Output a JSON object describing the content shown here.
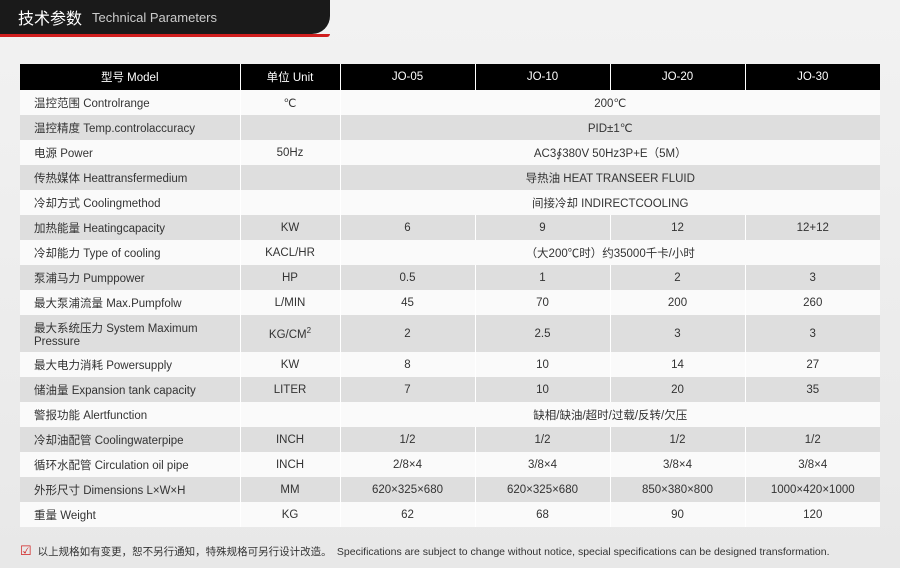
{
  "header": {
    "title_cn": "技术参数",
    "title_en": "Technical Parameters"
  },
  "columns": {
    "model": "型号 Model",
    "unit": "单位 Unit",
    "models": [
      "JO-05",
      "JO-10",
      "JO-20",
      "JO-30"
    ]
  },
  "rows": [
    {
      "label": "温控范围 Controlrange",
      "unit": "℃",
      "span": "200℃"
    },
    {
      "label": "温控精度 Temp.controlaccuracy",
      "unit": "",
      "span": "PID±1℃"
    },
    {
      "label": "电源 Power",
      "unit": "50Hz",
      "span": "AC3∮380V 50Hz3P+E（5M）"
    },
    {
      "label": "传热媒体 Heattransfermedium",
      "unit": "",
      "span": "导热油 HEAT TRANSEER FLUID"
    },
    {
      "label": "冷却方式 Coolingmethod",
      "unit": "",
      "span": "间接冷却 INDIRECTCOOLING"
    },
    {
      "label": "加热能量 Heatingcapacity",
      "unit": "KW",
      "vals": [
        "6",
        "9",
        "12",
        "12+12"
      ]
    },
    {
      "label": "冷却能力 Type of cooling",
      "unit": "KACL/HR",
      "span": "（大200℃时）约35000千卡/小时"
    },
    {
      "label": "泵浦马力 Pumppower",
      "unit": "HP",
      "vals": [
        "0.5",
        "1",
        "2",
        "3"
      ]
    },
    {
      "label": "最大泵浦流量 Max.Pumpfolw",
      "unit": "L/MIN",
      "vals": [
        "45",
        "70",
        "200",
        "260"
      ]
    },
    {
      "label": "最大系统压力 System Maximum Pressure",
      "unit_html": "KG/CM<sup>2</sup>",
      "vals": [
        "2",
        "2.5",
        "3",
        "3"
      ]
    },
    {
      "label": "最大电力消耗 Powersupply",
      "unit": "KW",
      "vals": [
        "8",
        "10",
        "14",
        "27"
      ]
    },
    {
      "label": "储油量 Expansion tank capacity",
      "unit": "LITER",
      "vals": [
        "7",
        "10",
        "20",
        "35"
      ]
    },
    {
      "label": "警报功能 Alertfunction",
      "unit": "",
      "span": "缺相/缺油/超时/过载/反转/欠压"
    },
    {
      "label": "冷却油配管 Coolingwaterpipe",
      "unit": "INCH",
      "vals": [
        "1/2",
        "1/2",
        "1/2",
        "1/2"
      ]
    },
    {
      "label": "循环水配管 Circulation oil pipe",
      "unit": "INCH",
      "vals": [
        "2/8×4",
        "3/8×4",
        "3/8×4",
        "3/8×4"
      ]
    },
    {
      "label": "外形尺寸 Dimensions L×W×H",
      "unit": "MM",
      "vals": [
        "620×325×680",
        "620×325×680",
        "850×380×800",
        "1000×420×1000"
      ]
    },
    {
      "label": "重量 Weight",
      "unit": "KG",
      "vals": [
        "62",
        "68",
        "90",
        "120"
      ]
    }
  ],
  "footer": {
    "text": "以上规格如有变更，恕不另行通知，特殊规格可另行设计改造。　Specifications are subject to change without notice, special specifications can be designed transformation."
  }
}
